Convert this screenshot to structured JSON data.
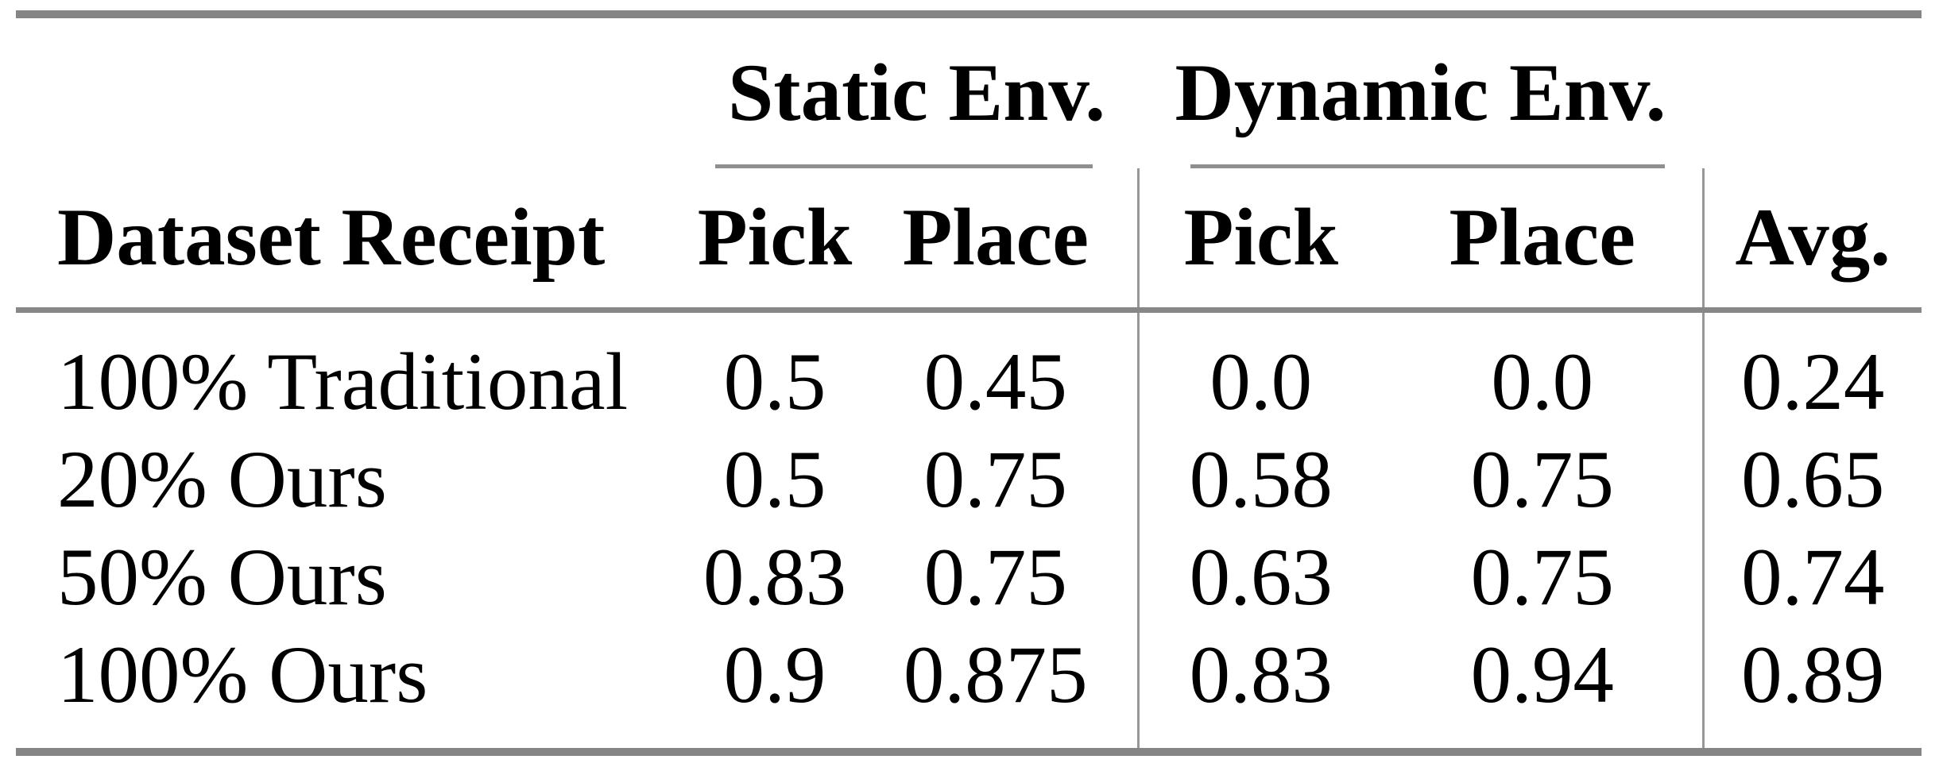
{
  "table": {
    "group_headers": {
      "static": "Static Env.",
      "dynamic": "Dynamic Env."
    },
    "columns": {
      "row_header": "Dataset Receipt",
      "static_pick": "Pick",
      "static_place": "Place",
      "dynamic_pick": "Pick",
      "dynamic_place": "Place",
      "avg": "Avg."
    },
    "rows": [
      {
        "label": "100% Traditional",
        "values": [
          "0.5",
          "0.45",
          "0.0",
          "0.0",
          "0.24"
        ]
      },
      {
        "label": "20% Ours",
        "values": [
          "0.5",
          "0.75",
          "0.58",
          "0.75",
          "0.65"
        ]
      },
      {
        "label": "50% Ours",
        "values": [
          "0.83",
          "0.75",
          "0.63",
          "0.75",
          "0.74"
        ]
      },
      {
        "label": "100% Ours",
        "values": [
          "0.9",
          "0.875",
          "0.83",
          "0.94",
          "0.89"
        ]
      }
    ],
    "colors": {
      "rule_heavy": "#858585",
      "rule_mid": "#878787",
      "rule_thin": "#8f8f8f",
      "rule_vertical": "#979797",
      "text": "#000000",
      "background": "#ffffff"
    }
  },
  "chart_data": {
    "type": "table",
    "title": "",
    "column_groups": [
      "",
      "Static Env.",
      "Static Env.",
      "Dynamic Env.",
      "Dynamic Env.",
      ""
    ],
    "columns": [
      "Dataset Receipt",
      "Pick",
      "Place",
      "Pick",
      "Place",
      "Avg."
    ],
    "rows": [
      [
        "100% Traditional",
        0.5,
        0.45,
        0.0,
        0.0,
        0.24
      ],
      [
        "20% Ours",
        0.5,
        0.75,
        0.58,
        0.75,
        0.65
      ],
      [
        "50% Ours",
        0.83,
        0.75,
        0.63,
        0.75,
        0.74
      ],
      [
        "100% Ours",
        0.9,
        0.875,
        0.83,
        0.94,
        0.89
      ]
    ]
  }
}
